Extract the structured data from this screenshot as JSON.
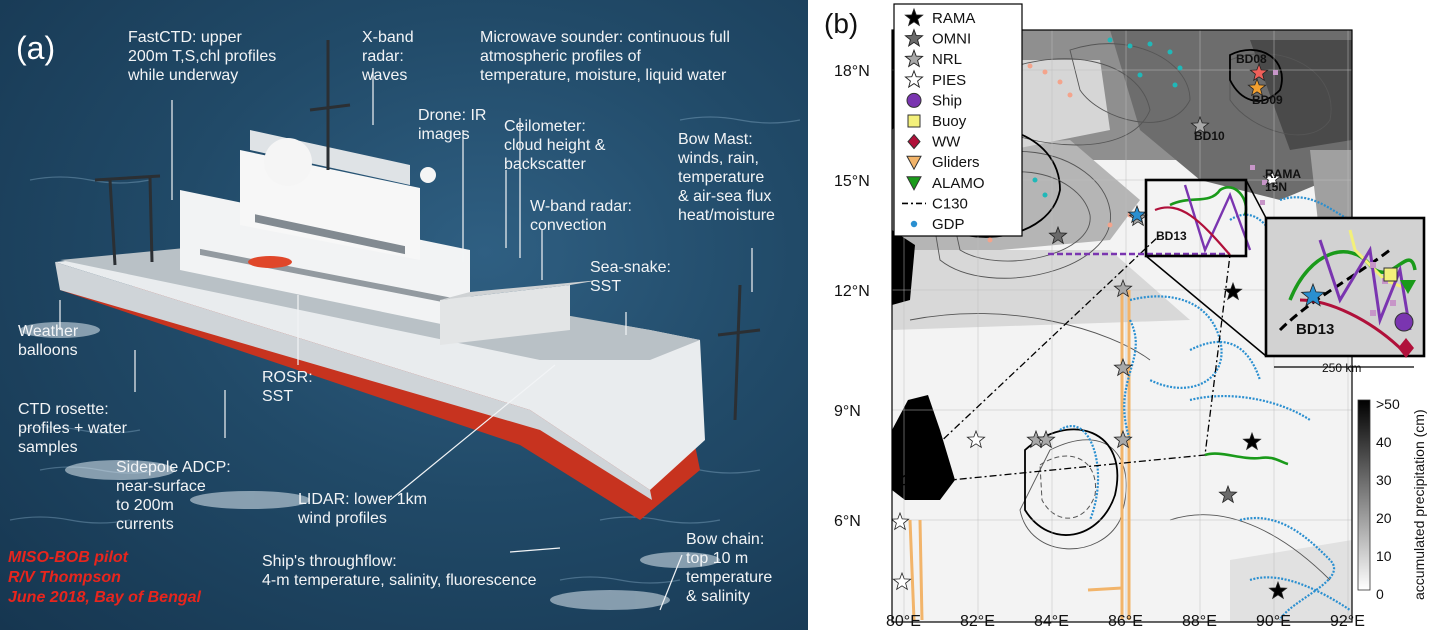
{
  "panel_a": {
    "label": "(a)",
    "annotations": [
      {
        "id": "fastctd",
        "text": "FastCTD: upper\n200m T,S,chl profiles\nwhile underway"
      },
      {
        "id": "xband",
        "text": "X-band\nradar:\nwaves"
      },
      {
        "id": "microwave",
        "text": "Microwave sounder: continuous full\natmospheric profiles of\ntemperature, moisture, liquid water"
      },
      {
        "id": "drone",
        "text": "Drone: IR\nimages"
      },
      {
        "id": "ceilometer",
        "text": "Ceilometer:\ncloud height &\nbackscatter"
      },
      {
        "id": "bowmast",
        "text": "Bow Mast:\nwinds, rain,\ntemperature\n& air-sea flux\nheat/moisture"
      },
      {
        "id": "wband",
        "text": "W-band radar:\nconvection"
      },
      {
        "id": "seasnake",
        "text": "Sea-snake:\nSST"
      },
      {
        "id": "balloons",
        "text": "Weather\nballoons"
      },
      {
        "id": "ctd",
        "text": "CTD rosette:\nprofiles + water\nsamples"
      },
      {
        "id": "rosr",
        "text": "ROSR:\nSST"
      },
      {
        "id": "adcp",
        "text": "Sidepole ADCP:\nnear-surface\nto 200m\ncurrents"
      },
      {
        "id": "lidar",
        "text": "LIDAR: lower 1km\nwind profiles"
      },
      {
        "id": "bowchain",
        "text": "Bow chain:\ntop 10 m\ntemperature\n& salinity"
      },
      {
        "id": "throughflow",
        "text": "Ship's throughflow:\n4-m temperature, salinity, fluorescence"
      }
    ],
    "caption": [
      "MISO-BOB pilot",
      "R/V Thompson",
      "June 2018, Bay of Bengal"
    ]
  },
  "panel_b": {
    "label": "(b)",
    "legend": [
      {
        "label": "RAMA",
        "marker": "star",
        "color": "#000000"
      },
      {
        "label": "OMNI",
        "marker": "star",
        "color": "#6a6a6a"
      },
      {
        "label": "NRL",
        "marker": "star",
        "color": "#a8a8a8"
      },
      {
        "label": "PIES",
        "marker": "star",
        "color": "#ffffff"
      },
      {
        "label": "Ship",
        "marker": "circle",
        "color": "#7a35b0"
      },
      {
        "label": "Buoy",
        "marker": "square",
        "color": "#f3f07a"
      },
      {
        "label": "WW",
        "marker": "diamond",
        "color": "#b0103a"
      },
      {
        "label": "Gliders",
        "marker": "triangle-down",
        "color": "#f2b46a"
      },
      {
        "label": "ALAMO",
        "marker": "triangle-down",
        "color": "#1a9a1a"
      },
      {
        "label": "C130",
        "marker": "dashdot",
        "color": "#000000"
      },
      {
        "label": "GDP",
        "marker": "dot",
        "color": "#2a8fd0"
      }
    ],
    "x_ticks": [
      "80°E",
      "82°E",
      "84°E",
      "86°E",
      "88°E",
      "90°E",
      "92°E"
    ],
    "y_ticks": [
      "18°N",
      "15°N",
      "12°N",
      "9°N",
      "6°N"
    ],
    "site_labels": [
      "BD08",
      "BD09",
      "BD10",
      "RAMA\n15N",
      "BD13"
    ],
    "inset_label": "BD13",
    "inset_scale": "250 km",
    "colorbar": {
      "title": "accumulated precipitation (cm)",
      "ticks": [
        ">50",
        "40",
        "30",
        "20",
        "10",
        "0"
      ]
    },
    "colors": {
      "gdp": "#2a8fd0",
      "alamo": "#1a9a1a",
      "ship": "#7a35b0",
      "ww": "#b0103a",
      "glider": "#f2b46a",
      "nrl": "#a8a8a8",
      "omni": "#6a6a6a",
      "buoy": "#f3f07a"
    }
  }
}
